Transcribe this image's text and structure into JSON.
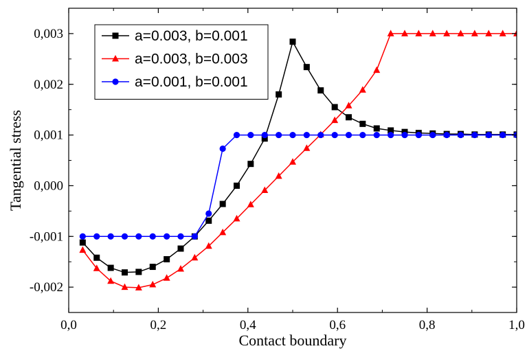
{
  "chart_data": {
    "type": "line",
    "title": "",
    "xlabel": "Contact boundary",
    "ylabel": "Tangential stress",
    "xlim": [
      0.0,
      1.0
    ],
    "ylim": [
      -0.0025,
      0.0035
    ],
    "xticks": [
      0.0,
      0.2,
      0.4,
      0.6,
      0.8,
      1.0
    ],
    "xtick_labels": [
      "0,0",
      "0,2",
      "0,4",
      "0,6",
      "0,8",
      "1,0"
    ],
    "yticks": [
      -0.002,
      -0.001,
      0.0,
      0.001,
      0.002,
      0.003
    ],
    "ytick_labels": [
      "-0,002",
      "-0,001",
      "0,000",
      "0,001",
      "0,002",
      "0,003"
    ],
    "grid": false,
    "legend_position": "top-left",
    "x": [
      0.0312,
      0.0625,
      0.0938,
      0.125,
      0.1562,
      0.1875,
      0.2188,
      0.25,
      0.2812,
      0.3125,
      0.3438,
      0.375,
      0.4062,
      0.4375,
      0.4688,
      0.5,
      0.5312,
      0.5625,
      0.5938,
      0.625,
      0.6562,
      0.6875,
      0.7188,
      0.75,
      0.7812,
      0.8125,
      0.8438,
      0.875,
      0.9062,
      0.9375,
      0.9688,
      1.0
    ],
    "series": [
      {
        "name": "a=0.003, b=0.001",
        "color": "#000000",
        "marker": "square",
        "values": [
          -0.00112,
          -0.00142,
          -0.00162,
          -0.00171,
          -0.0017,
          -0.0016,
          -0.00145,
          -0.00124,
          -0.001,
          -0.00069,
          -0.00036,
          0.0,
          0.00043,
          0.00093,
          0.0018,
          0.00284,
          0.00234,
          0.00188,
          0.00155,
          0.00135,
          0.00122,
          0.00113,
          0.00109,
          0.00106,
          0.00104,
          0.00103,
          0.00102,
          0.00102,
          0.00101,
          0.00101,
          0.00101,
          0.00101
        ]
      },
      {
        "name": "a=0.003, b=0.003",
        "color": "#ff0000",
        "marker": "triangle",
        "values": [
          -0.00127,
          -0.00163,
          -0.00188,
          -0.002,
          -0.00201,
          -0.00195,
          -0.00182,
          -0.00164,
          -0.00142,
          -0.00119,
          -0.00092,
          -0.00065,
          -0.00037,
          -9e-05,
          0.00019,
          0.00047,
          0.00074,
          0.00101,
          0.00129,
          0.00158,
          0.00189,
          0.00228,
          0.003,
          0.003,
          0.003,
          0.003,
          0.003,
          0.003,
          0.003,
          0.003,
          0.003,
          0.003
        ]
      },
      {
        "name": "a=0.001, b=0.001",
        "color": "#0000ff",
        "marker": "circle",
        "values": [
          -0.001,
          -0.001,
          -0.001,
          -0.001,
          -0.001,
          -0.001,
          -0.001,
          -0.001,
          -0.001,
          -0.00055,
          0.00073,
          0.001,
          0.001,
          0.001,
          0.001,
          0.001,
          0.001,
          0.001,
          0.001,
          0.001,
          0.001,
          0.001,
          0.001,
          0.001,
          0.001,
          0.001,
          0.001,
          0.001,
          0.001,
          0.001,
          0.001,
          0.001
        ]
      }
    ]
  }
}
